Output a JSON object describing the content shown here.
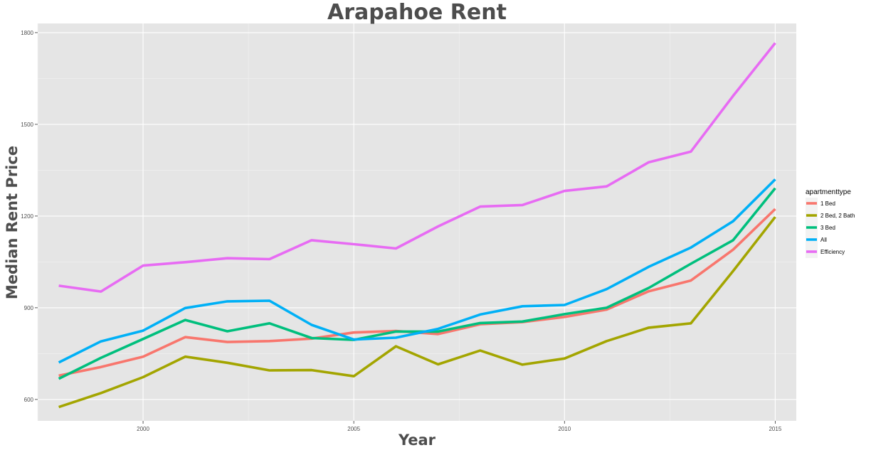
{
  "chart_data": {
    "type": "line",
    "title": "Arapahoe Rent",
    "xlabel": "Year",
    "ylabel": "Median Rent Price",
    "xlim": [
      1997.5,
      2015.5
    ],
    "ylim": [
      530,
      1830
    ],
    "x_ticks": [
      2000,
      2005,
      2010,
      2015
    ],
    "x_tick_labels": [
      "2000",
      "2005",
      "2010",
      "2015"
    ],
    "y_ticks": [
      600,
      900,
      1200,
      1500,
      1800
    ],
    "y_tick_labels": [
      "600",
      "900",
      "1200",
      "1500",
      "1800"
    ],
    "grid": true,
    "legend": {
      "title": "apartmenttype",
      "position": "right"
    },
    "x": [
      1998,
      1999,
      2000,
      2001,
      2002,
      2003,
      2004,
      2005,
      2006,
      2007,
      2008,
      2009,
      2010,
      2011,
      2012,
      2013,
      2014,
      2015
    ],
    "series": [
      {
        "name": "1 Bed",
        "color": "#F8766D",
        "values": [
          678,
          706,
          740,
          804,
          788,
          791,
          799,
          819,
          824,
          814,
          846,
          853,
          870,
          894,
          954,
          989,
          1090,
          1223
        ]
      },
      {
        "name": "2 Bed, 2 Bath",
        "color": "#A3A500",
        "values": [
          575,
          621,
          673,
          740,
          720,
          695,
          696,
          676,
          774,
          715,
          760,
          714,
          734,
          791,
          835,
          849,
          1020,
          1197
        ]
      },
      {
        "name": "3 Bed",
        "color": "#00BF7D",
        "values": [
          668,
          736,
          798,
          860,
          823,
          849,
          801,
          795,
          822,
          822,
          850,
          855,
          879,
          900,
          965,
          1044,
          1121,
          1291
        ]
      },
      {
        "name": "All",
        "color": "#00B0F6",
        "values": [
          721,
          790,
          825,
          899,
          921,
          923,
          844,
          796,
          802,
          831,
          878,
          905,
          909,
          961,
          1034,
          1097,
          1183,
          1320
        ]
      },
      {
        "name": "Efficiency",
        "color": "#E76BF3",
        "values": [
          972,
          953,
          1038,
          1049,
          1062,
          1059,
          1121,
          1108,
          1094,
          1166,
          1231,
          1236,
          1282,
          1297,
          1376,
          1411,
          1593,
          1766
        ]
      }
    ]
  }
}
